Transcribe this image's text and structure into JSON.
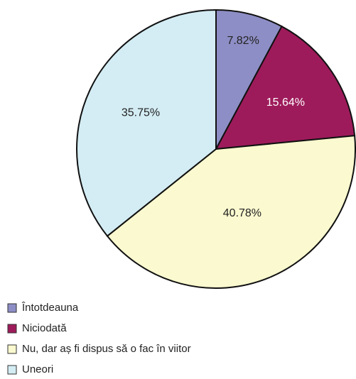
{
  "chart_data": {
    "type": "pie",
    "categories": [
      "Întotdeauna",
      "Niciodată",
      "Nu, dar aș fi dispus să o fac în viitor",
      "Uneori"
    ],
    "values": [
      7.82,
      15.64,
      40.78,
      35.75
    ],
    "value_labels": [
      "7.82%",
      "15.64%",
      "40.78%",
      "35.75%"
    ],
    "colors": [
      "#8e8ec6",
      "#9e1b5b",
      "#fbf9cf",
      "#d4edf4"
    ],
    "label_colors": [
      "#222222",
      "#ffffff",
      "#222222",
      "#222222"
    ]
  }
}
